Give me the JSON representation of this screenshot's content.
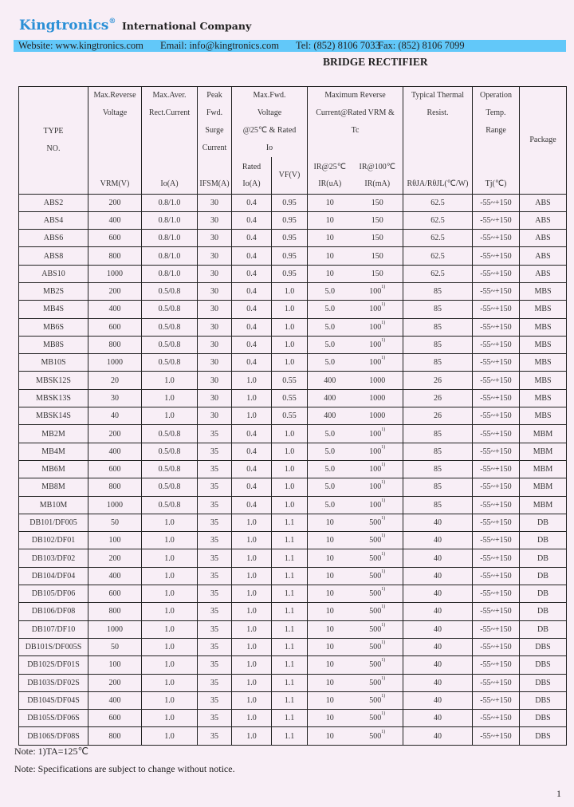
{
  "header": {
    "brand": "Kingtronics",
    "registered": "®",
    "company": "International Company",
    "website": "Website: www.kingtronics.com",
    "email": "Email: info@kingtronics.com",
    "tel": "Tel: (852) 8106 7033",
    "fax": "Fax: (852) 8106 7099",
    "brand_color": "#2a8fd6",
    "bar_color": "#62c8f9"
  },
  "title": "BRIDGE RECTIFIER",
  "table": {
    "headers": {
      "type": [
        "TYPE",
        "NO."
      ],
      "vrm": [
        "Max.Reverse",
        "Voltage"
      ],
      "vrm_unit": "VRM(V)",
      "io": [
        "Max.Aver.",
        "Rect.Current"
      ],
      "io_unit": "Io(A)",
      "ifsm": [
        "Peak",
        "Fwd.",
        "Surge",
        "Current"
      ],
      "ifsm_unit": "IFSM(A)",
      "vf": [
        "Max.Fwd.",
        "Voltage",
        "@25℃ & Rated",
        "Io"
      ],
      "rated_io_unit": [
        "Rated",
        "Io(A)"
      ],
      "vf_unit": "VF(V)",
      "ir": [
        "Maximum Reverse",
        "Current@Rated VRM &",
        "Tc"
      ],
      "ir25_unit": [
        "IR@25℃",
        "IR(uA)"
      ],
      "ir100_unit": [
        "IR@100℃",
        "IR(mA)"
      ],
      "thermal": [
        "Typical Thermal",
        "Resist."
      ],
      "thermal_unit": "RθJA/RθJL(℃/W)",
      "temp": [
        "Operation",
        "Temp.",
        "Range"
      ],
      "temp_unit": "Tj(℃)",
      "package": "Package"
    },
    "rows": [
      [
        "ABS2",
        "200",
        "0.8/1.0",
        "30",
        "0.4",
        "0.95",
        "10",
        "150",
        "",
        "62.5",
        "-55~+150",
        "ABS"
      ],
      [
        "ABS4",
        "400",
        "0.8/1.0",
        "30",
        "0.4",
        "0.95",
        "10",
        "150",
        "",
        "62.5",
        "-55~+150",
        "ABS"
      ],
      [
        "ABS6",
        "600",
        "0.8/1.0",
        "30",
        "0.4",
        "0.95",
        "10",
        "150",
        "",
        "62.5",
        "-55~+150",
        "ABS"
      ],
      [
        "ABS8",
        "800",
        "0.8/1.0",
        "30",
        "0.4",
        "0.95",
        "10",
        "150",
        "",
        "62.5",
        "-55~+150",
        "ABS"
      ],
      [
        "ABS10",
        "1000",
        "0.8/1.0",
        "30",
        "0.4",
        "0.95",
        "10",
        "150",
        "",
        "62.5",
        "-55~+150",
        "ABS"
      ],
      [
        "MB2S",
        "200",
        "0.5/0.8",
        "30",
        "0.4",
        "1.0",
        "5.0",
        "100",
        "1)",
        "85",
        "-55~+150",
        "MBS"
      ],
      [
        "MB4S",
        "400",
        "0.5/0.8",
        "30",
        "0.4",
        "1.0",
        "5.0",
        "100",
        "1)",
        "85",
        "-55~+150",
        "MBS"
      ],
      [
        "MB6S",
        "600",
        "0.5/0.8",
        "30",
        "0.4",
        "1.0",
        "5.0",
        "100",
        "1)",
        "85",
        "-55~+150",
        "MBS"
      ],
      [
        "MB8S",
        "800",
        "0.5/0.8",
        "30",
        "0.4",
        "1.0",
        "5.0",
        "100",
        "1)",
        "85",
        "-55~+150",
        "MBS"
      ],
      [
        "MB10S",
        "1000",
        "0.5/0.8",
        "30",
        "0.4",
        "1.0",
        "5.0",
        "100",
        "1)",
        "85",
        "-55~+150",
        "MBS"
      ],
      [
        "MBSK12S",
        "20",
        "1.0",
        "30",
        "1.0",
        "0.55",
        "400",
        "1000",
        "",
        "26",
        "-55~+150",
        "MBS"
      ],
      [
        "MBSK13S",
        "30",
        "1.0",
        "30",
        "1.0",
        "0.55",
        "400",
        "1000",
        "",
        "26",
        "-55~+150",
        "MBS"
      ],
      [
        "MBSK14S",
        "40",
        "1.0",
        "30",
        "1.0",
        "0.55",
        "400",
        "1000",
        "",
        "26",
        "-55~+150",
        "MBS"
      ],
      [
        "MB2M",
        "200",
        "0.5/0.8",
        "35",
        "0.4",
        "1.0",
        "5.0",
        "100",
        "1)",
        "85",
        "-55~+150",
        "MBM"
      ],
      [
        "MB4M",
        "400",
        "0.5/0.8",
        "35",
        "0.4",
        "1.0",
        "5.0",
        "100",
        "1)",
        "85",
        "-55~+150",
        "MBM"
      ],
      [
        "MB6M",
        "600",
        "0.5/0.8",
        "35",
        "0.4",
        "1.0",
        "5.0",
        "100",
        "1)",
        "85",
        "-55~+150",
        "MBM"
      ],
      [
        "MB8M",
        "800",
        "0.5/0.8",
        "35",
        "0.4",
        "1.0",
        "5.0",
        "100",
        "1)",
        "85",
        "-55~+150",
        "MBM"
      ],
      [
        "MB10M",
        "1000",
        "0.5/0.8",
        "35",
        "0.4",
        "1.0",
        "5.0",
        "100",
        "1)",
        "85",
        "-55~+150",
        "MBM"
      ],
      [
        "DB101/DF005",
        "50",
        "1.0",
        "35",
        "1.0",
        "1.1",
        "10",
        "500",
        "1)",
        "40",
        "-55~+150",
        "DB"
      ],
      [
        "DB102/DF01",
        "100",
        "1.0",
        "35",
        "1.0",
        "1.1",
        "10",
        "500",
        "1)",
        "40",
        "-55~+150",
        "DB"
      ],
      [
        "DB103/DF02",
        "200",
        "1.0",
        "35",
        "1.0",
        "1.1",
        "10",
        "500",
        "1)",
        "40",
        "-55~+150",
        "DB"
      ],
      [
        "DB104/DF04",
        "400",
        "1.0",
        "35",
        "1.0",
        "1.1",
        "10",
        "500",
        "1)",
        "40",
        "-55~+150",
        "DB"
      ],
      [
        "DB105/DF06",
        "600",
        "1.0",
        "35",
        "1.0",
        "1.1",
        "10",
        "500",
        "1)",
        "40",
        "-55~+150",
        "DB"
      ],
      [
        "DB106/DF08",
        "800",
        "1.0",
        "35",
        "1.0",
        "1.1",
        "10",
        "500",
        "1)",
        "40",
        "-55~+150",
        "DB"
      ],
      [
        "DB107/DF10",
        "1000",
        "1.0",
        "35",
        "1.0",
        "1.1",
        "10",
        "500",
        "1)",
        "40",
        "-55~+150",
        "DB"
      ],
      [
        "DB101S/DF005S",
        "50",
        "1.0",
        "35",
        "1.0",
        "1.1",
        "10",
        "500",
        "1)",
        "40",
        "-55~+150",
        "DBS"
      ],
      [
        "DB102S/DF01S",
        "100",
        "1.0",
        "35",
        "1.0",
        "1.1",
        "10",
        "500",
        "1)",
        "40",
        "-55~+150",
        "DBS"
      ],
      [
        "DB103S/DF02S",
        "200",
        "1.0",
        "35",
        "1.0",
        "1.1",
        "10",
        "500",
        "1)",
        "40",
        "-55~+150",
        "DBS"
      ],
      [
        "DB104S/DF04S",
        "400",
        "1.0",
        "35",
        "1.0",
        "1.1",
        "10",
        "500",
        "1)",
        "40",
        "-55~+150",
        "DBS"
      ],
      [
        "DB105S/DF06S",
        "600",
        "1.0",
        "35",
        "1.0",
        "1.1",
        "10",
        "500",
        "1)",
        "40",
        "-55~+150",
        "DBS"
      ],
      [
        "DB106S/DF08S",
        "800",
        "1.0",
        "35",
        "1.0",
        "1.1",
        "10",
        "500",
        "1)",
        "40",
        "-55~+150",
        "DBS"
      ]
    ]
  },
  "notes": [
    "Note:  1)TA=125℃",
    "Note: Specifications are subject to change without notice."
  ],
  "page_number": "1"
}
